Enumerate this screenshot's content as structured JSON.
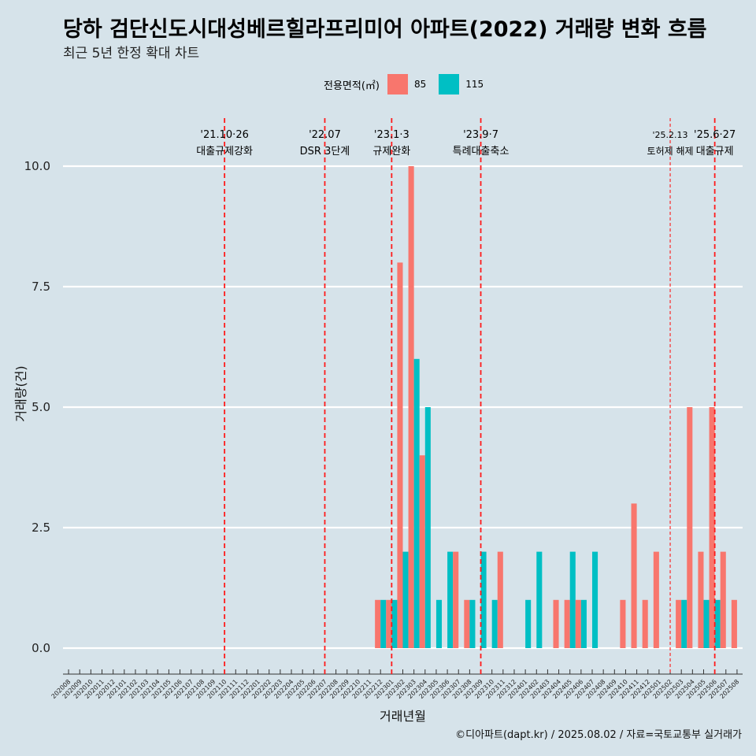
{
  "title": "당하 검단신도시대성베르힐라프리미어 아파트(2022) 거래량 변화 흐름",
  "subtitle": "최근 5년 한정 확대 차트",
  "caption": "©디아파트(dapt.kr) / 2025.08.02 / 자료=국토교통부 실거래가",
  "legend": {
    "title": "전용면적(㎡)",
    "items": [
      {
        "label": "85",
        "color": "#f8766d"
      },
      {
        "label": "115",
        "color": "#00bfc4"
      }
    ]
  },
  "chart_data": {
    "type": "bar",
    "xlabel": "거래년월",
    "ylabel": "거래량(건)",
    "ylim": [
      0,
      10
    ],
    "yticks": [
      "0.0",
      "2.5",
      "5.0",
      "7.5",
      "10.0"
    ],
    "grid": "horizontal",
    "legend_position": "top",
    "categories": [
      "202008",
      "202009",
      "202010",
      "202011",
      "202012",
      "202101",
      "202102",
      "202103",
      "202104",
      "202105",
      "202106",
      "202107",
      "202108",
      "202109",
      "202110",
      "202111",
      "202112",
      "202201",
      "202202",
      "202203",
      "202204",
      "202205",
      "202206",
      "202207",
      "202208",
      "202209",
      "202210",
      "202211",
      "202212",
      "202301",
      "202302",
      "202303",
      "202304",
      "202305",
      "202306",
      "202307",
      "202308",
      "202309",
      "202310",
      "202311",
      "202312",
      "202401",
      "202402",
      "202403",
      "202404",
      "202405",
      "202406",
      "202407",
      "202408",
      "202409",
      "202410",
      "202411",
      "202412",
      "202501",
      "202502",
      "202503",
      "202504",
      "202505",
      "202506",
      "202507",
      "202508"
    ],
    "series": [
      {
        "name": "85",
        "color": "#f8766d",
        "values": [
          0,
          0,
          0,
          0,
          0,
          0,
          0,
          0,
          0,
          0,
          0,
          0,
          0,
          0,
          0,
          0,
          0,
          0,
          0,
          0,
          0,
          0,
          0,
          0,
          0,
          0,
          0,
          0,
          1,
          1,
          8,
          10,
          4,
          0,
          0,
          2,
          1,
          0,
          0,
          2,
          0,
          0,
          0,
          0,
          1,
          1,
          1,
          0,
          0,
          0,
          1,
          3,
          1,
          2,
          0,
          1,
          5,
          2,
          5,
          2,
          1
        ]
      },
      {
        "name": "115",
        "color": "#00bfc4",
        "values": [
          0,
          0,
          0,
          0,
          0,
          0,
          0,
          0,
          0,
          0,
          0,
          0,
          0,
          0,
          0,
          0,
          0,
          0,
          0,
          0,
          0,
          0,
          0,
          0,
          0,
          0,
          0,
          0,
          1,
          1,
          2,
          6,
          5,
          1,
          2,
          0,
          1,
          2,
          1,
          0,
          0,
          1,
          2,
          0,
          0,
          2,
          1,
          2,
          0,
          0,
          0,
          0,
          0,
          0,
          0,
          1,
          0,
          1,
          1,
          0,
          0
        ]
      }
    ],
    "events": [
      {
        "category": "202110",
        "date": "'21.10·26",
        "label": "대출규제강화",
        "style": "dashed"
      },
      {
        "category": "202207",
        "date": "'22.07",
        "label": "DSR 3단계",
        "style": "dashed"
      },
      {
        "category": "202301",
        "date": "'23.1·3",
        "label": "규제완화",
        "style": "dashed"
      },
      {
        "category": "202309",
        "date": "'23.9·7",
        "label": "특례대출축소",
        "style": "dashed"
      },
      {
        "category": "202502",
        "date": "'25.2.13",
        "label": "토허제 해제",
        "style": "thin"
      },
      {
        "category": "202506",
        "date": "'25.6·27",
        "label": "대출규제",
        "style": "dashed"
      }
    ]
  }
}
